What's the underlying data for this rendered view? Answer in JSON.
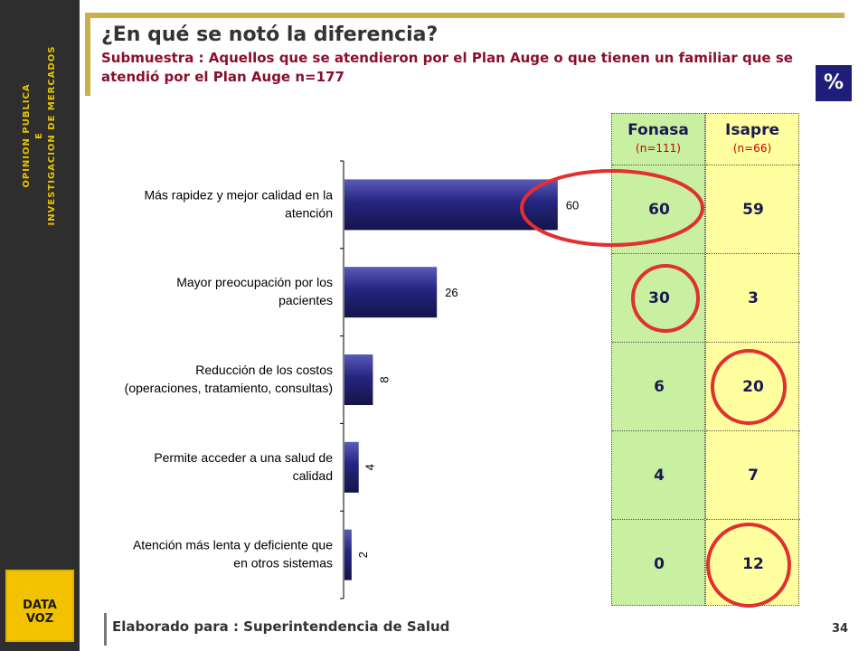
{
  "sidebar": {
    "line1": "OPINION PUBLICA",
    "line2": "E",
    "line3": "INVESTIGACION DE MERCADOS",
    "logo_text": "DATA VOZ"
  },
  "header": {
    "title": "¿En qué se notó la diferencia?",
    "subtitle": "Submuestra : Aquellos que se atendieron por el Plan Auge o que tienen un familiar que se atendió por el Plan Auge n=177",
    "badge": "%"
  },
  "footer": {
    "text": "Elaborado para : Superintendencia de Salud",
    "page": "34"
  },
  "colors": {
    "bar": "#252580",
    "highlight": "#e03030",
    "fonasa_bg": "#c8f0a0",
    "isapre_bg": "#ffffa0",
    "title_frame": "#c9b04a"
  },
  "chart_data": {
    "type": "bar",
    "orientation": "horizontal",
    "categories": [
      "Más rapidez y mejor calidad en la atención",
      "Mayor preocupación por los pacientes",
      "Reducción de los costos (operaciones, tratamiento, consultas)",
      "Permite acceder a una salud de calidad",
      "Atención más lenta y deficiente que en otros sistemas"
    ],
    "category_lines": [
      [
        "Más rapidez y mejor calidad en la",
        "atención"
      ],
      [
        "Mayor preocupación por los",
        "pacientes"
      ],
      [
        "Reducción de los costos",
        "(operaciones, tratamiento, consultas)"
      ],
      [
        "Permite acceder a una salud de",
        "calidad"
      ],
      [
        "Atención más lenta y deficiente que",
        "en otros sistemas"
      ]
    ],
    "values": [
      60,
      26,
      8,
      4,
      2
    ],
    "xlim": [
      0,
      100
    ]
  },
  "table": {
    "columns": [
      {
        "name": "Fonasa",
        "n": "(n=111)",
        "values": [
          "60",
          "30",
          "6",
          "4",
          "0"
        ]
      },
      {
        "name": "Isapre",
        "n": "(n=66)",
        "values": [
          "59",
          "3",
          "20",
          "7",
          "12"
        ]
      }
    ]
  }
}
